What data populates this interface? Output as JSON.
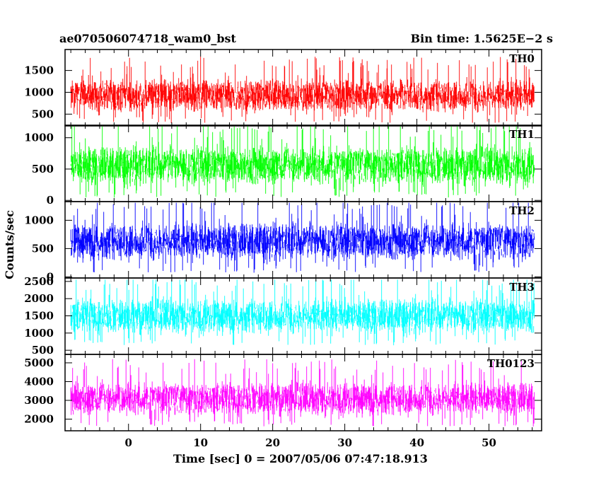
{
  "header": {
    "title": "ae070506074718_wam0_bst",
    "bin_time": "Bin time: 1.5625E−2 s"
  },
  "chart_data": {
    "type": "line",
    "xlabel": "Time [sec] 0 = 2007/05/06 07:47:18.913",
    "ylabel": "Counts/sec",
    "xlim": [
      -8.8,
      57.3
    ],
    "x_ticks": [
      0,
      10,
      20,
      30,
      40,
      50
    ],
    "x_data_range": [
      -8.0,
      56.3
    ],
    "panels": [
      {
        "name": "TH0",
        "color": "#ff0000",
        "ylim": [
          230,
          1980
        ],
        "y_ticks": [
          500,
          1000,
          1500
        ],
        "baseline": 930,
        "spread": 320,
        "min": 250,
        "max": 1970
      },
      {
        "name": "TH1",
        "color": "#00ff00",
        "ylim": [
          -20,
          1200
        ],
        "y_ticks": [
          0,
          500,
          1000
        ],
        "baseline": 560,
        "spread": 260,
        "min": 0,
        "max": 1180
      },
      {
        "name": "TH2",
        "color": "#0000ff",
        "ylim": [
          -20,
          1330
        ],
        "y_ticks": [
          0,
          500,
          1000
        ],
        "baseline": 630,
        "spread": 280,
        "min": 10,
        "max": 1310
      },
      {
        "name": "TH3",
        "color": "#00ffff",
        "ylim": [
          380,
          2600
        ],
        "y_ticks": [
          500,
          1000,
          1500,
          2000,
          2500
        ],
        "baseline": 1500,
        "spread": 430,
        "min": 420,
        "max": 2550
      },
      {
        "name": "TH0123",
        "color": "#ff00ff",
        "ylim": [
          1380,
          5450
        ],
        "y_ticks": [
          2000,
          3000,
          4000,
          5000
        ],
        "baseline": 3100,
        "spread": 750,
        "min": 1500,
        "max": 5300
      }
    ]
  }
}
